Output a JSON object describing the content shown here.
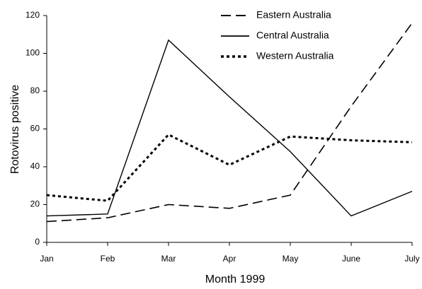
{
  "chart_data": {
    "type": "line",
    "x_label": "Month 1999",
    "y_label": "Rotovirus positive",
    "categories": [
      "Jan",
      "Feb",
      "Mar",
      "Apr",
      "May",
      "June",
      "July"
    ],
    "series": [
      {
        "name": "Eastern Australia",
        "color": "#000000",
        "values": [
          11,
          13,
          20,
          18,
          25,
          72,
          116
        ]
      },
      {
        "name": "Central Australia",
        "color": "#000000",
        "values": [
          14,
          15,
          107,
          77,
          48,
          14,
          27
        ]
      },
      {
        "name": "Western Australia",
        "color": "#000000",
        "values": [
          25,
          22,
          57,
          41,
          56,
          54,
          53
        ]
      }
    ],
    "ylim": [
      0,
      120
    ],
    "yticks": [
      0,
      20,
      40,
      60,
      80,
      100,
      120
    ],
    "grid": false,
    "legend": "upper right"
  }
}
